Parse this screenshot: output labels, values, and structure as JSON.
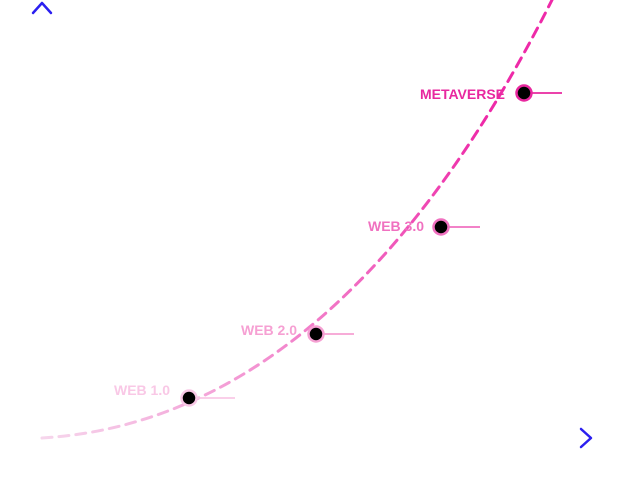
{
  "diagram": {
    "colors": {
      "axis": "#2b1ff0",
      "axis_fade": "#e4e2fb",
      "curve_start": "#f6d6ec",
      "curve_end": "#ee2aa8",
      "dot_fill": "#000000"
    },
    "stages": [
      {
        "label": "WEB 1.0",
        "color": "#f9c8e6"
      },
      {
        "label": "WEB 2.0",
        "color": "#f6a0d3"
      },
      {
        "label": "WEB 3.0",
        "color": "#f071c0"
      },
      {
        "label": "METAVERSE",
        "color": "#e8289f"
      }
    ]
  }
}
